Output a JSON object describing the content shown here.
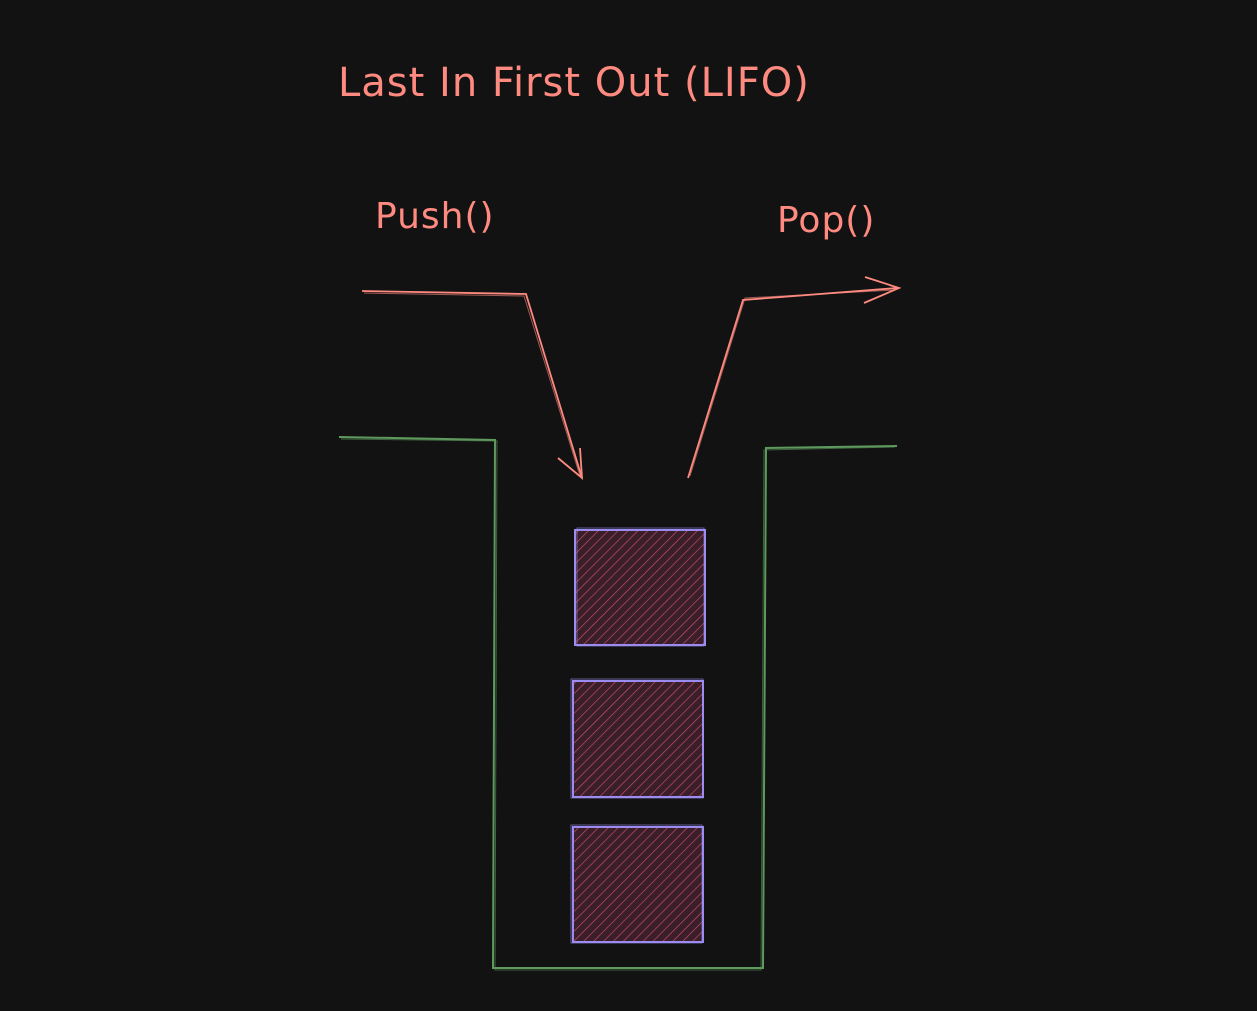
{
  "diagram": {
    "title": "Last In First Out (LIFO)",
    "push_label": "Push()",
    "pop_label": "Pop()",
    "stack_item_count": 3
  },
  "colors": {
    "background": "#121212",
    "text": "#ff8a80",
    "arrow": "#ff8a80",
    "container": "#5e9a5e",
    "item_stroke": "#9a8cf0",
    "item_fill": "#3a1e2a",
    "item_hatch": "#c9506a"
  }
}
